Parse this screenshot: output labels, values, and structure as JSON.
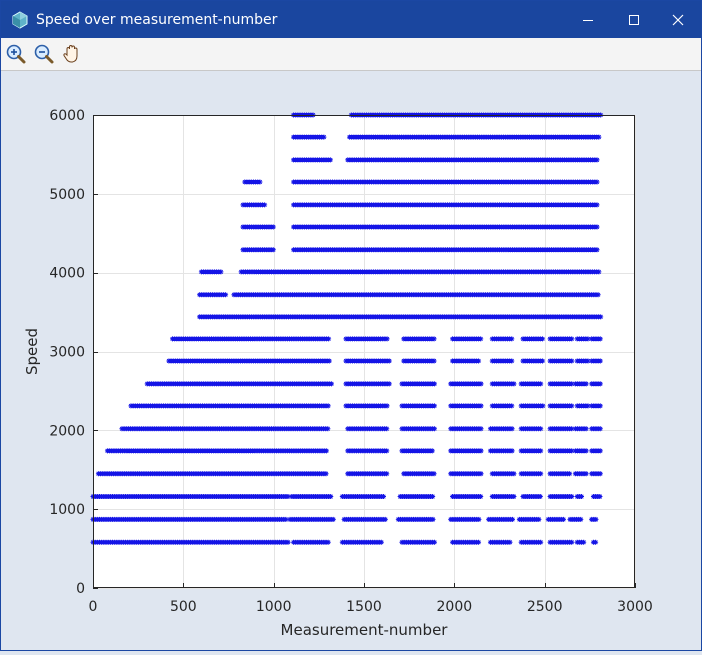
{
  "window": {
    "title": "Speed over measurement-number"
  },
  "toolbar": {
    "tools": [
      {
        "name": "zoom-in",
        "icon": "zoom-in-icon"
      },
      {
        "name": "zoom-out",
        "icon": "zoom-out-icon"
      },
      {
        "name": "pan",
        "icon": "hand-pan-icon"
      }
    ]
  },
  "colors": {
    "titlebar": "#1a469f",
    "figure_bg": "#dfe6f0",
    "points": "#1414e6",
    "grid": "#e4e4e4"
  },
  "chart_data": {
    "type": "scatter",
    "title": "",
    "xlabel": "Measurement-number",
    "ylabel": "Speed",
    "xlim": [
      0,
      3000
    ],
    "ylim": [
      0,
      6000
    ],
    "xticks": [
      0,
      500,
      1000,
      1500,
      2000,
      2500,
      3000
    ],
    "yticks": [
      0,
      1000,
      2000,
      3000,
      4000,
      5000,
      6000
    ],
    "grid": true,
    "marker": "asterisk",
    "color": "#1414e6",
    "speed_levels": [
      {
        "y": 580,
        "segments": [
          [
            0,
            1090
          ],
          [
            1110,
            1310
          ],
          [
            1380,
            1600
          ],
          [
            1710,
            1890
          ],
          [
            1990,
            2140
          ],
          [
            2200,
            2310
          ],
          [
            2370,
            2480
          ],
          [
            2530,
            2660
          ],
          [
            2680,
            2720
          ],
          [
            2770,
            2790
          ]
        ]
      },
      {
        "y": 870,
        "segments": [
          [
            0,
            1070
          ],
          [
            1090,
            1340
          ],
          [
            1390,
            1620
          ],
          [
            1690,
            1890
          ],
          [
            1980,
            2140
          ],
          [
            2190,
            2330
          ],
          [
            2360,
            2470
          ],
          [
            2520,
            2610
          ],
          [
            2640,
            2710
          ],
          [
            2760,
            2790
          ]
        ]
      },
      {
        "y": 1160,
        "segments": [
          [
            0,
            1080
          ],
          [
            1100,
            1320
          ],
          [
            1380,
            1610
          ],
          [
            1700,
            1880
          ],
          [
            1990,
            2150
          ],
          [
            2210,
            2340
          ],
          [
            2380,
            2480
          ],
          [
            2530,
            2650
          ],
          [
            2680,
            2710
          ],
          [
            2770,
            2810
          ]
        ]
      },
      {
        "y": 1450,
        "segments": [
          [
            30,
            1300
          ],
          [
            1410,
            1630
          ],
          [
            1720,
            1890
          ],
          [
            1980,
            2150
          ],
          [
            2210,
            2330
          ],
          [
            2370,
            2480
          ],
          [
            2530,
            2640
          ],
          [
            2670,
            2730
          ],
          [
            2760,
            2810
          ]
        ]
      },
      {
        "y": 1740,
        "segments": [
          [
            80,
            1300
          ],
          [
            1410,
            1630
          ],
          [
            1710,
            1880
          ],
          [
            1980,
            2150
          ],
          [
            2200,
            2320
          ],
          [
            2370,
            2480
          ],
          [
            2530,
            2650
          ],
          [
            2670,
            2740
          ],
          [
            2760,
            2810
          ]
        ]
      },
      {
        "y": 2020,
        "segments": [
          [
            160,
            1300
          ],
          [
            1410,
            1630
          ],
          [
            1710,
            1890
          ],
          [
            1980,
            2150
          ],
          [
            2200,
            2320
          ],
          [
            2370,
            2480
          ],
          [
            2530,
            2650
          ],
          [
            2670,
            2740
          ],
          [
            2760,
            2810
          ]
        ]
      },
      {
        "y": 2310,
        "segments": [
          [
            210,
            1310
          ],
          [
            1400,
            1630
          ],
          [
            1710,
            1890
          ],
          [
            1980,
            2150
          ],
          [
            2210,
            2320
          ],
          [
            2370,
            2490
          ],
          [
            2530,
            2650
          ],
          [
            2680,
            2740
          ],
          [
            2760,
            2810
          ]
        ]
      },
      {
        "y": 2590,
        "segments": [
          [
            300,
            1320
          ],
          [
            1400,
            1640
          ],
          [
            1710,
            1890
          ],
          [
            1980,
            2150
          ],
          [
            2210,
            2330
          ],
          [
            2370,
            2480
          ],
          [
            2530,
            2650
          ],
          [
            2670,
            2740
          ],
          [
            2760,
            2810
          ]
        ]
      },
      {
        "y": 2880,
        "segments": [
          [
            420,
            1310
          ],
          [
            1400,
            1640
          ],
          [
            1720,
            1890
          ],
          [
            1990,
            2140
          ],
          [
            2210,
            2320
          ],
          [
            2380,
            2490
          ],
          [
            2530,
            2650
          ],
          [
            2680,
            2740
          ],
          [
            2760,
            2810
          ]
        ]
      },
      {
        "y": 3160,
        "segments": [
          [
            440,
            1310
          ],
          [
            1400,
            1630
          ],
          [
            1720,
            1890
          ],
          [
            1990,
            2150
          ],
          [
            2210,
            2320
          ],
          [
            2380,
            2490
          ],
          [
            2530,
            2660
          ],
          [
            2680,
            2740
          ],
          [
            2760,
            2810
          ]
        ]
      },
      {
        "y": 3440,
        "segments": [
          [
            590,
            2810
          ]
        ]
      },
      {
        "y": 3720,
        "segments": [
          [
            590,
            740
          ],
          [
            780,
            2800
          ]
        ]
      },
      {
        "y": 4010,
        "segments": [
          [
            600,
            710
          ],
          [
            820,
            2800
          ]
        ]
      },
      {
        "y": 4290,
        "segments": [
          [
            830,
            1000
          ],
          [
            1110,
            2790
          ]
        ]
      },
      {
        "y": 4580,
        "segments": [
          [
            830,
            1000
          ],
          [
            1110,
            2790
          ]
        ]
      },
      {
        "y": 4860,
        "segments": [
          [
            830,
            960
          ],
          [
            1110,
            2790
          ]
        ]
      },
      {
        "y": 5150,
        "segments": [
          [
            840,
            930
          ],
          [
            1110,
            2800
          ]
        ]
      },
      {
        "y": 5430,
        "segments": [
          [
            1110,
            1320
          ],
          [
            1410,
            2800
          ]
        ]
      },
      {
        "y": 5720,
        "segments": [
          [
            1110,
            1280
          ],
          [
            1420,
            2800
          ]
        ]
      },
      {
        "y": 6000,
        "segments": [
          [
            1110,
            1220
          ],
          [
            1430,
            2810
          ]
        ]
      }
    ]
  }
}
